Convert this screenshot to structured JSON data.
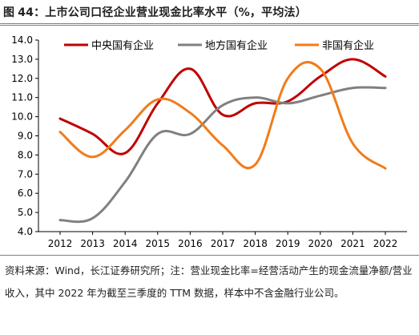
{
  "figure": {
    "label": "图",
    "number": "44：",
    "title": "上市公司口径企业营业现金比率水平（%，平均法）"
  },
  "source_note": "资料来源：Wind，长江证券研究所；注：营业现金比率=经营活动产生的现金流量净额/营业收入，其中 2022 年为截至三季度的 TTM 数据，样本中不含金融行业公司。",
  "chart_data": {
    "type": "line",
    "title": "",
    "xlabel": "",
    "ylabel": "",
    "x": [
      2012,
      2013,
      2014,
      2015,
      2016,
      2017,
      2018,
      2019,
      2020,
      2021,
      2022
    ],
    "x_tick_labels": [
      "2012",
      "2013",
      "2014",
      "2015",
      "2016",
      "2017",
      "2018",
      "2019",
      "2020",
      "2021",
      "2022"
    ],
    "ylim": [
      4.0,
      14.0
    ],
    "y_ticks": [
      4.0,
      5.0,
      6.0,
      7.0,
      8.0,
      9.0,
      10.0,
      11.0,
      12.0,
      13.0,
      14.0
    ],
    "y_tick_labels": [
      "4.0",
      "5.0",
      "6.0",
      "7.0",
      "8.0",
      "9.0",
      "10.0",
      "11.0",
      "12.0",
      "13.0",
      "14.0"
    ],
    "grid": false,
    "smooth": true,
    "legend_position": "top",
    "series": [
      {
        "name": "中央国有企业",
        "color": "#c00000",
        "values": [
          9.9,
          9.1,
          8.1,
          10.7,
          12.5,
          10.1,
          10.7,
          10.8,
          12.1,
          13.0,
          12.1
        ]
      },
      {
        "name": "地方国有企业",
        "color": "#808080",
        "values": [
          4.6,
          4.7,
          6.6,
          9.1,
          9.1,
          10.6,
          11.0,
          10.7,
          11.1,
          11.5,
          11.5
        ]
      },
      {
        "name": "非国有企业",
        "color": "#f07c1a",
        "values": [
          9.2,
          7.9,
          9.3,
          10.9,
          10.2,
          8.5,
          7.5,
          12.0,
          12.5,
          8.6,
          7.3
        ]
      }
    ]
  }
}
